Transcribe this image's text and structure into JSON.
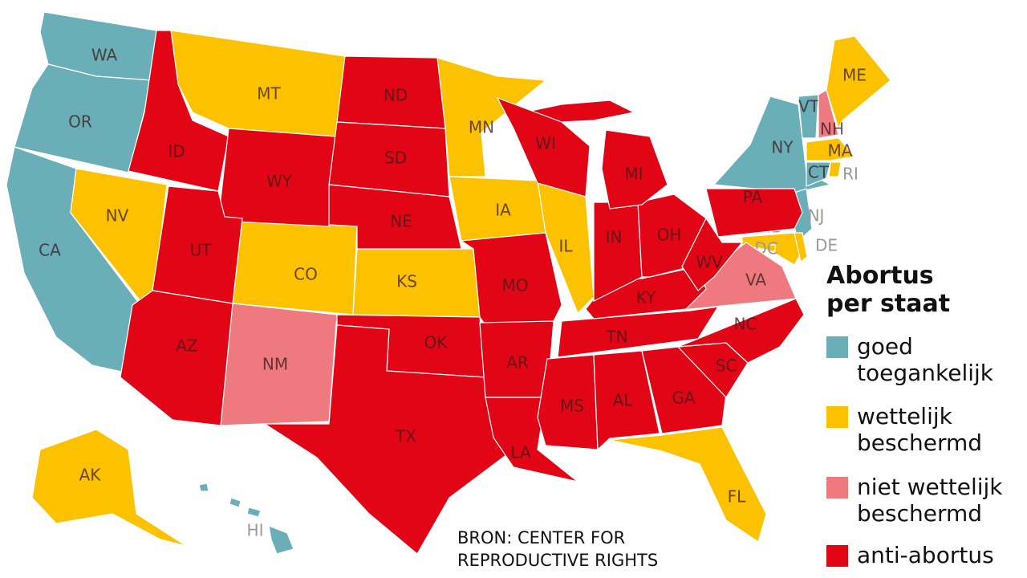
{
  "title": "Abortus per staat",
  "source": "BRON: CENTER FOR REPRODUCTIVE RIGHTS",
  "groups": [
    {
      "label": "goed toegankelijk",
      "color": "#6aafb8",
      "states": [
        "WA",
        "OR",
        "CA",
        "NY",
        "VT",
        "CT",
        "NJ",
        "HI"
      ]
    },
    {
      "label": "wettelijk beschermd",
      "color": "#fcc200",
      "states": [
        "MT",
        "NV",
        "CO",
        "KS",
        "MN",
        "IA",
        "IL",
        "ME",
        "MA",
        "RI",
        "MD",
        "DE",
        "DC",
        "AK",
        "FL"
      ]
    },
    {
      "label": "niet wettelijk beschermd",
      "color": "#ee7a80",
      "states": [
        "NM",
        "NH",
        "VA"
      ]
    },
    {
      "label": "anti-abortus",
      "color": "#e10516",
      "states": [
        "ID",
        "WY",
        "ND",
        "SD",
        "NE",
        "UT",
        "AZ",
        "OK",
        "TX",
        "MO",
        "AR",
        "LA",
        "MS",
        "AL",
        "GA",
        "SC",
        "NC",
        "TN",
        "KY",
        "IN",
        "OH",
        "WV",
        "PA",
        "MI",
        "WI"
      ]
    }
  ]
}
